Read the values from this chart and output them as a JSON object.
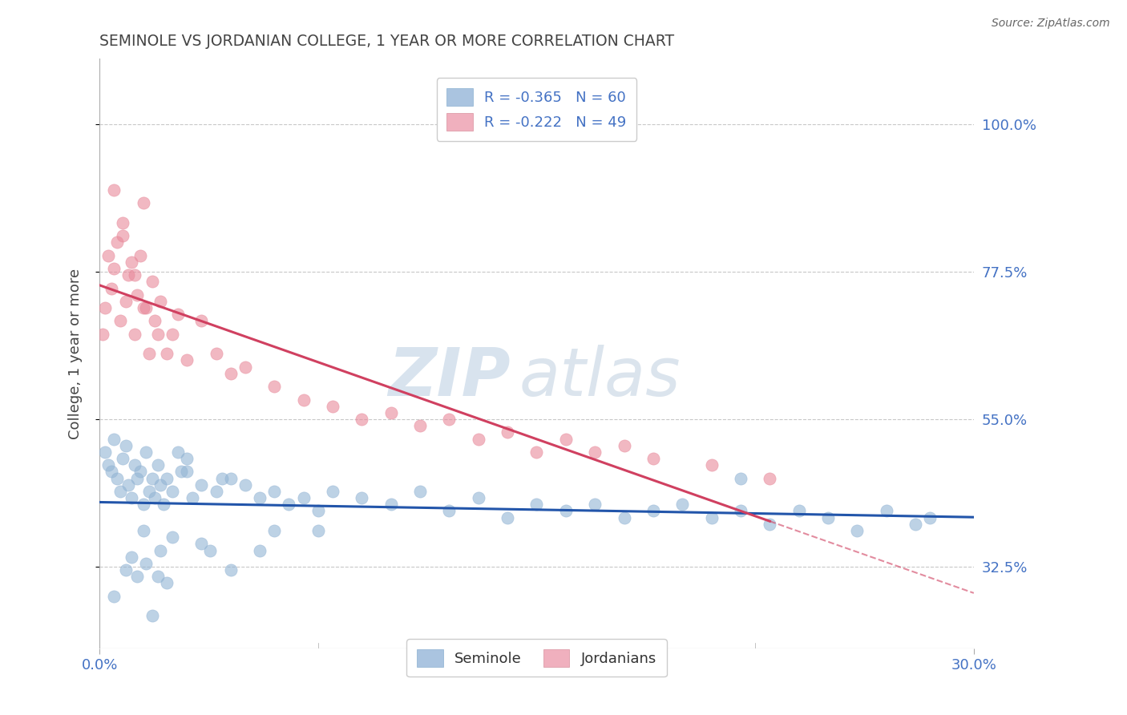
{
  "title": "SEMINOLE VS JORDANIAN COLLEGE, 1 YEAR OR MORE CORRELATION CHART",
  "source": "Source: ZipAtlas.com",
  "xlabel_seminole": "Seminole",
  "xlabel_jordanians": "Jordanians",
  "ylabel": "College, 1 year or more",
  "xlim": [
    0.0,
    30.0
  ],
  "ylim": [
    20.0,
    110.0
  ],
  "yticks": [
    32.5,
    55.0,
    77.5,
    100.0
  ],
  "xticks": [
    0.0,
    30.0
  ],
  "xtick_labels": [
    "0.0%",
    "30.0%"
  ],
  "ytick_labels": [
    "32.5%",
    "55.0%",
    "77.5%",
    "100.0%"
  ],
  "r_seminole": -0.365,
  "n_seminole": 60,
  "r_jordanian": -0.222,
  "n_jordanian": 49,
  "color_seminole": "#92b4d4",
  "color_seminole_line": "#2255aa",
  "color_jordanian": "#e8899a",
  "color_jordanian_line": "#d04060",
  "watermark_zip": "ZIP",
  "watermark_atlas": "atlas",
  "background_color": "#ffffff",
  "grid_color": "#c8c8c8",
  "title_color": "#444444",
  "axis_label_color": "#444444",
  "tick_label_color": "#4472c4",
  "source_color": "#666666",
  "seminole_x": [
    0.2,
    0.3,
    0.4,
    0.5,
    0.6,
    0.7,
    0.8,
    0.9,
    1.0,
    1.1,
    1.2,
    1.3,
    1.4,
    1.5,
    1.6,
    1.7,
    1.8,
    1.9,
    2.0,
    2.1,
    2.2,
    2.3,
    2.5,
    2.7,
    3.0,
    3.2,
    3.5,
    4.0,
    4.5,
    5.0,
    5.5,
    6.0,
    6.5,
    7.0,
    7.5,
    8.0,
    9.0,
    10.0,
    11.0,
    12.0,
    13.0,
    14.0,
    15.0,
    16.0,
    17.0,
    18.0,
    19.0,
    20.0,
    21.0,
    22.0,
    23.0,
    24.0,
    25.0,
    26.0,
    27.0,
    28.0,
    3.0,
    2.8,
    1.5,
    4.2
  ],
  "seminole_y": [
    50.0,
    48.0,
    47.0,
    52.0,
    46.0,
    44.0,
    49.0,
    51.0,
    45.0,
    43.0,
    48.0,
    46.0,
    47.0,
    42.0,
    50.0,
    44.0,
    46.0,
    43.0,
    48.0,
    45.0,
    42.0,
    46.0,
    44.0,
    50.0,
    47.0,
    43.0,
    45.0,
    44.0,
    46.0,
    45.0,
    43.0,
    44.0,
    42.0,
    43.0,
    41.0,
    44.0,
    43.0,
    42.0,
    44.0,
    41.0,
    43.0,
    40.0,
    42.0,
    41.0,
    42.0,
    40.0,
    41.0,
    42.0,
    40.0,
    41.0,
    39.0,
    41.0,
    40.0,
    38.0,
    41.0,
    39.0,
    49.0,
    47.0,
    38.0,
    46.0
  ],
  "jordanian_x": [
    0.1,
    0.2,
    0.3,
    0.4,
    0.5,
    0.6,
    0.7,
    0.8,
    0.9,
    1.0,
    1.1,
    1.2,
    1.3,
    1.4,
    1.5,
    1.6,
    1.7,
    1.8,
    1.9,
    2.0,
    2.1,
    2.3,
    2.5,
    2.7,
    3.0,
    3.5,
    4.0,
    4.5,
    5.0,
    6.0,
    7.0,
    8.0,
    9.0,
    10.0,
    11.0,
    12.0,
    13.0,
    14.0,
    15.0,
    16.0,
    17.0,
    18.0,
    19.0,
    21.0,
    23.0,
    0.5,
    0.8,
    1.2,
    1.5
  ],
  "jordanian_y": [
    68.0,
    72.0,
    80.0,
    75.0,
    78.0,
    82.0,
    70.0,
    85.0,
    73.0,
    77.0,
    79.0,
    68.0,
    74.0,
    80.0,
    88.0,
    72.0,
    65.0,
    76.0,
    70.0,
    68.0,
    73.0,
    65.0,
    68.0,
    71.0,
    64.0,
    70.0,
    65.0,
    62.0,
    63.0,
    60.0,
    58.0,
    57.0,
    55.0,
    56.0,
    54.0,
    55.0,
    52.0,
    53.0,
    50.0,
    52.0,
    50.0,
    51.0,
    49.0,
    48.0,
    46.0,
    90.0,
    83.0,
    77.0,
    72.0
  ],
  "seminole_x_extra": [
    3.5,
    6.0,
    2.5,
    1.8,
    2.3,
    5.5,
    0.9,
    1.1,
    1.6,
    2.0,
    3.8,
    4.5,
    7.5,
    22.0,
    28.5,
    0.5,
    1.3,
    2.1
  ],
  "seminole_y_extra": [
    36.0,
    38.0,
    37.0,
    25.0,
    30.0,
    35.0,
    32.0,
    34.0,
    33.0,
    31.0,
    35.0,
    32.0,
    38.0,
    46.0,
    40.0,
    28.0,
    31.0,
    35.0
  ]
}
